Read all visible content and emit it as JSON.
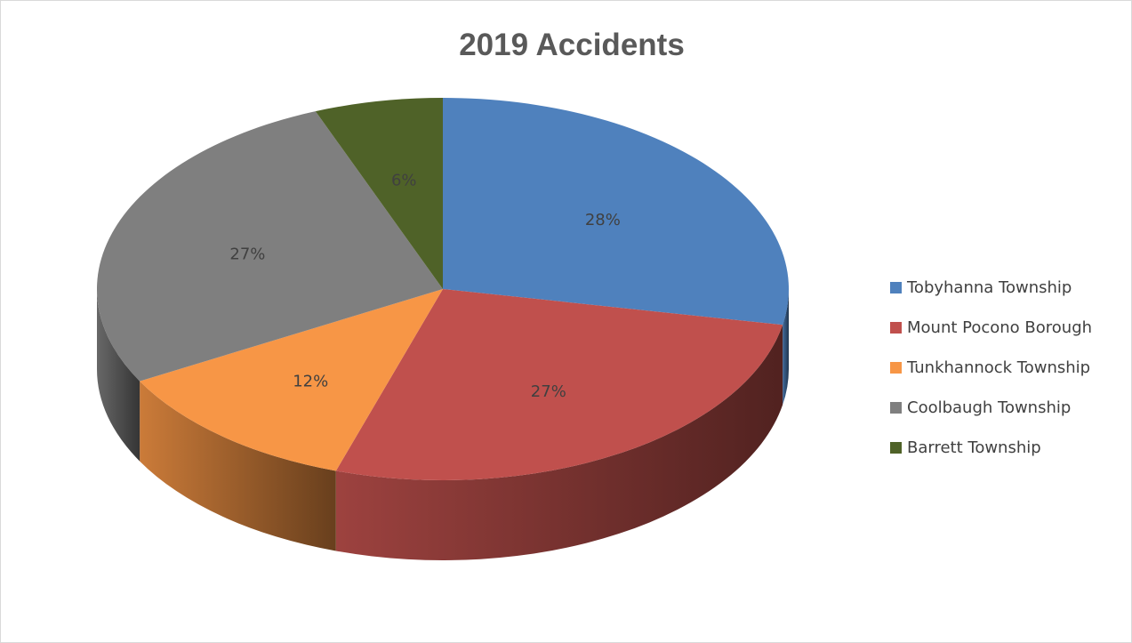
{
  "chart_data": {
    "type": "pie",
    "title": "2019 Accidents",
    "legend_position": "right",
    "categories": [
      "Tobyhanna Township",
      "Mount Pocono Borough",
      "Tunkhannock Township",
      "Coolbaugh Township",
      "Barrett Township"
    ],
    "values": [
      28,
      27,
      12,
      27,
      6
    ],
    "data_labels": [
      "28%",
      "27%",
      "12%",
      "27%",
      "6%"
    ],
    "colors": [
      "#4f81bd",
      "#c0504d",
      "#f79646",
      "#7f7f7f",
      "#4f6228"
    ]
  }
}
